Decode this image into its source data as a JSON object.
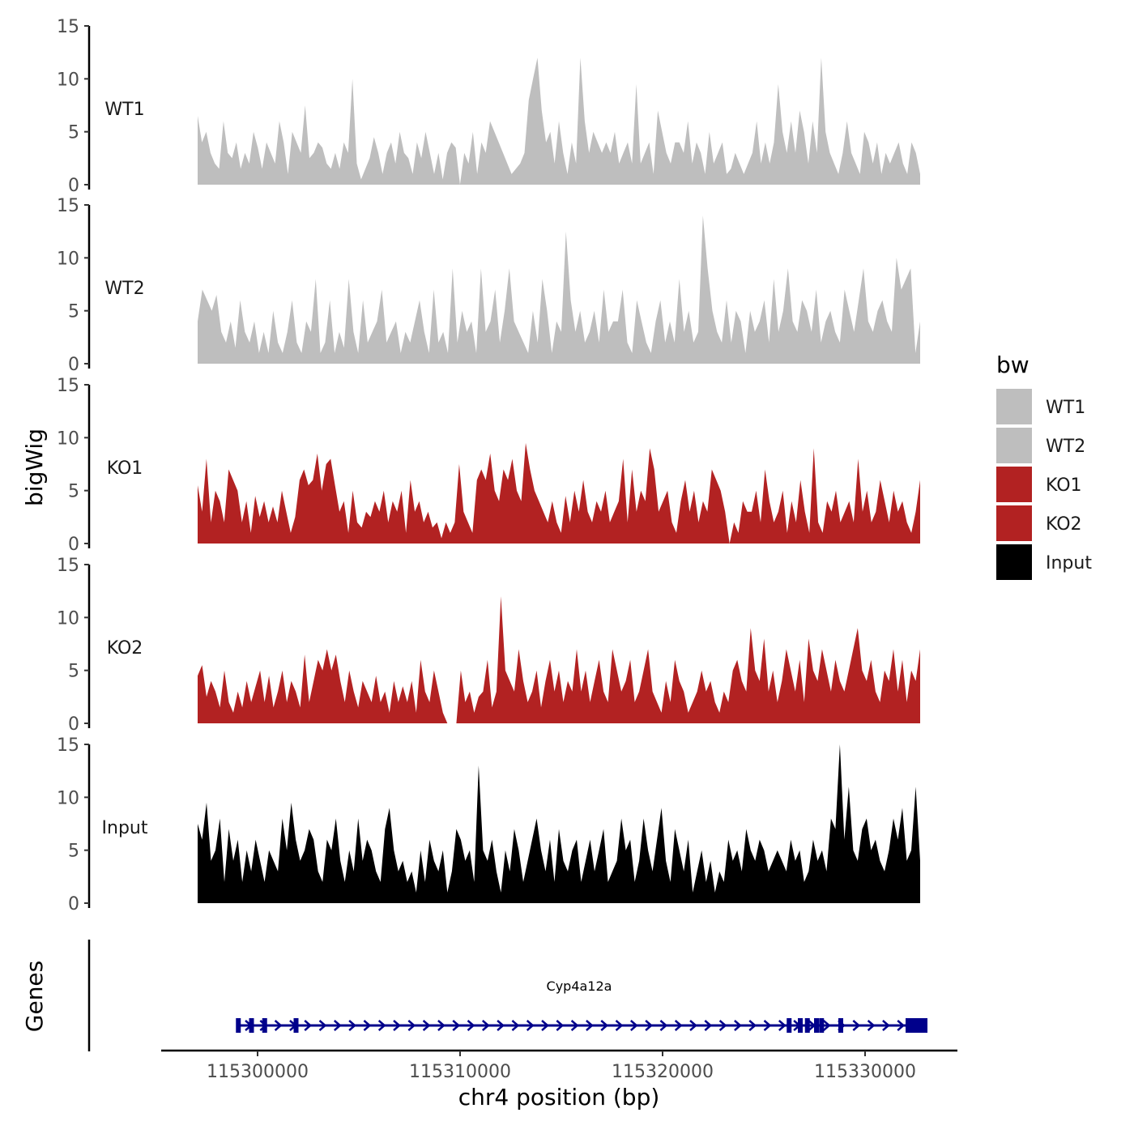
{
  "chart_data": {
    "type": "area",
    "chromosome": "chr4",
    "region": [
      115297000,
      115332500
    ],
    "xlabel": "chr4 position (bp)",
    "ylabel": "bigWig",
    "ylim": [
      0,
      15
    ],
    "yticks": [
      0,
      5,
      10,
      15
    ],
    "xticks": [
      {
        "value": 115300000,
        "label": "115300000"
      },
      {
        "value": 115310000,
        "label": "115310000"
      },
      {
        "value": 115320000,
        "label": "115320000"
      },
      {
        "value": 115330000,
        "label": "115330000"
      }
    ],
    "legend": {
      "title": "bw",
      "position": "right",
      "entries": [
        {
          "label": "WT1",
          "color": "#BEBEBE"
        },
        {
          "label": "WT2",
          "color": "#BEBEBE"
        },
        {
          "label": "KO1",
          "color": "#B22222"
        },
        {
          "label": "KO2",
          "color": "#B22222"
        },
        {
          "label": "Input",
          "color": "#000000"
        }
      ]
    },
    "series": [
      {
        "name": "WT1",
        "color": "#BEBEBE",
        "values": [
          6.5,
          4,
          5,
          3,
          2,
          1.5,
          6,
          3,
          2.5,
          4,
          1.5,
          3,
          2,
          5,
          3.5,
          1.5,
          4,
          3,
          2,
          6,
          4,
          1,
          5,
          4,
          3,
          7.5,
          2.5,
          3,
          4,
          3.5,
          2,
          1.5,
          3,
          1.5,
          4,
          3,
          10,
          2,
          0.5,
          1.5,
          2.5,
          4.5,
          3,
          1,
          3,
          4,
          2,
          5,
          3,
          2.5,
          1,
          4,
          2.5,
          5,
          3,
          1,
          3,
          0.5,
          3,
          4,
          3.5,
          0,
          3,
          2,
          5,
          1,
          4,
          3,
          6,
          5,
          4,
          3,
          2,
          1,
          1.5,
          2,
          3,
          8,
          10,
          12,
          7,
          4,
          5,
          2,
          6,
          3,
          1,
          4,
          2,
          12,
          6,
          3,
          5,
          4,
          3,
          4,
          3,
          5,
          2,
          3,
          4,
          2,
          9.5,
          2,
          3,
          4,
          1,
          7,
          5,
          3,
          2,
          4,
          4,
          3,
          6,
          2,
          4,
          3,
          1,
          5,
          2,
          3,
          4,
          1,
          1.5,
          3,
          2,
          1,
          2,
          3,
          6,
          2,
          4,
          2,
          4,
          9.5,
          5,
          3,
          6,
          3,
          7,
          5,
          2,
          6,
          3,
          12,
          5,
          3,
          2,
          1,
          3,
          6,
          3,
          2,
          1,
          5,
          4,
          2,
          4,
          1,
          3,
          2,
          3,
          4,
          2,
          1,
          4,
          3,
          1
        ]
      },
      {
        "name": "WT2",
        "color": "#BEBEBE",
        "values": [
          4,
          7,
          6,
          5,
          6.5,
          3,
          2,
          4,
          1.5,
          6,
          3,
          2,
          4,
          1,
          3,
          1,
          5,
          2,
          1,
          3,
          6,
          2,
          1,
          4,
          3,
          8,
          1,
          2,
          6,
          1,
          3,
          1.5,
          8,
          3,
          1,
          6,
          2,
          3,
          4,
          7,
          2,
          3,
          4,
          1,
          3,
          2,
          4,
          6,
          3,
          1,
          7,
          2,
          3,
          1,
          9,
          2,
          5,
          3,
          4,
          1,
          9,
          3,
          4,
          7,
          2,
          5,
          9,
          4,
          3,
          2,
          1,
          5,
          2,
          8,
          5,
          1,
          4,
          3,
          12.5,
          6,
          3,
          5,
          2,
          3,
          5,
          2,
          7,
          3,
          4,
          4,
          7,
          2,
          1,
          6,
          4,
          2,
          1,
          4,
          6,
          2,
          4,
          2,
          8,
          3,
          5,
          2,
          3,
          14,
          9,
          5,
          3,
          2,
          6,
          2,
          5,
          4,
          1,
          5,
          3,
          4,
          6,
          2,
          8,
          3,
          5,
          9,
          4,
          3,
          6,
          5,
          3,
          7,
          2,
          4,
          5,
          3,
          2,
          7,
          5,
          3,
          6,
          9,
          4,
          3,
          5,
          6,
          4,
          3,
          10,
          7,
          8,
          9,
          1,
          4
        ]
      },
      {
        "name": "KO1",
        "color": "#B22222",
        "values": [
          5.5,
          3,
          8,
          2,
          5,
          4,
          2,
          7,
          6,
          5,
          2,
          4,
          1,
          4.5,
          2.5,
          4,
          2,
          3.5,
          2,
          5,
          3,
          1,
          2.5,
          6,
          7,
          5.5,
          6,
          8.5,
          5,
          7.5,
          8,
          5.5,
          3,
          4,
          1,
          5,
          2,
          1.5,
          3,
          2.5,
          4,
          3,
          5,
          2,
          4,
          3,
          5,
          1,
          6,
          3,
          4,
          2,
          3,
          1.5,
          2,
          0.5,
          2,
          1,
          2,
          7.5,
          3,
          2,
          1,
          6,
          7,
          6,
          8.5,
          5,
          4,
          7,
          6,
          8,
          5,
          4,
          9.5,
          7,
          5,
          4,
          3,
          2,
          4,
          2,
          1,
          4.5,
          2,
          5,
          3,
          6,
          3,
          2,
          4,
          3,
          5,
          2,
          3,
          4,
          8,
          2,
          7,
          3,
          5,
          4,
          9,
          7,
          3,
          4,
          5,
          2,
          1,
          4,
          6,
          3,
          5,
          2,
          4,
          3,
          7,
          6,
          5,
          3,
          0,
          2,
          1,
          4,
          3,
          3,
          5,
          2,
          7,
          4,
          2,
          3,
          5,
          1,
          4,
          2,
          6,
          3,
          1,
          9,
          2,
          1,
          4,
          3,
          5,
          2,
          3,
          4,
          2,
          8,
          3,
          5,
          2,
          3,
          6,
          4,
          2,
          5,
          3,
          4,
          2,
          1,
          3,
          6
        ]
      },
      {
        "name": "KO2",
        "color": "#B22222",
        "values": [
          4.5,
          5.5,
          2.5,
          4,
          3,
          1.5,
          5,
          2,
          1,
          3,
          1.5,
          4,
          2,
          3.5,
          5,
          2,
          4.5,
          1.5,
          3,
          5,
          2,
          4,
          3,
          1.5,
          6.5,
          2,
          4,
          6,
          5,
          7,
          5,
          6.5,
          4,
          2,
          5,
          3,
          1.5,
          4,
          3,
          2,
          4.5,
          2,
          3,
          1,
          4,
          2,
          3.5,
          2,
          4,
          1,
          6,
          3,
          2,
          5,
          3,
          1,
          0,
          0,
          0,
          5,
          2,
          3,
          1,
          2.5,
          3,
          6,
          1.5,
          3,
          12,
          5,
          4,
          3,
          7,
          4,
          2,
          3,
          5,
          1.5,
          4,
          6,
          3,
          5,
          2,
          4,
          3,
          7,
          3,
          5,
          2,
          4,
          6,
          3,
          2,
          7,
          5,
          3,
          4,
          6,
          2,
          3,
          5,
          7,
          3,
          2,
          1,
          4,
          2,
          6,
          4,
          3,
          1,
          2,
          3,
          5,
          3,
          4,
          2,
          1,
          3,
          2,
          5,
          6,
          4,
          3,
          9,
          5,
          4,
          8,
          3,
          5,
          2,
          4,
          7,
          5,
          3,
          6,
          2,
          8,
          5,
          4,
          7,
          5,
          3,
          6,
          4,
          3,
          5,
          7,
          9,
          5,
          4,
          6,
          3,
          2,
          5,
          4,
          7,
          3,
          6,
          2,
          5,
          4,
          7
        ]
      },
      {
        "name": "Input",
        "color": "#000000",
        "values": [
          7.5,
          6,
          9.5,
          4,
          5,
          8,
          2,
          7,
          4,
          6,
          2,
          5,
          3,
          6,
          4,
          2,
          5,
          4,
          3,
          8,
          5,
          9.5,
          6,
          4,
          5,
          7,
          6,
          3,
          2,
          6,
          5,
          8,
          4,
          2,
          5,
          3,
          8,
          4,
          6,
          5,
          3,
          2,
          7,
          9,
          5,
          3,
          4,
          2,
          3,
          1,
          5,
          2,
          6,
          4,
          3,
          5,
          1,
          3,
          7,
          6,
          4,
          5,
          2,
          13,
          5,
          4,
          6,
          3,
          1,
          5,
          3,
          7,
          5,
          2,
          4,
          6,
          8,
          5,
          3,
          6,
          2,
          7,
          4,
          3,
          5,
          6,
          2,
          4,
          6,
          3,
          5,
          7,
          2,
          3,
          4,
          8,
          5,
          6,
          2,
          4,
          8,
          5,
          3,
          6,
          9,
          4,
          2,
          7,
          5,
          3,
          6,
          1,
          3,
          5,
          2,
          4,
          1,
          3,
          2,
          6,
          4,
          5,
          3,
          7,
          5,
          4,
          6,
          5,
          3,
          4,
          5,
          4,
          3,
          6,
          4,
          5,
          2,
          3,
          6,
          4,
          5,
          3,
          8,
          7,
          15,
          6,
          11,
          5,
          4,
          7,
          8,
          5,
          6,
          4,
          3,
          5,
          8,
          6,
          9,
          4,
          5,
          11,
          4
        ]
      }
    ],
    "genes_track": {
      "label": "Genes",
      "gene_name": "Cyp4a12a",
      "start": 115299000,
      "end": 115333000,
      "strand": "+",
      "color": "#00008B",
      "exons": [
        115299050,
        115299700,
        115300350,
        115301900,
        115326250,
        115326800,
        115327150,
        115327600,
        115327850,
        115328800
      ]
    }
  }
}
